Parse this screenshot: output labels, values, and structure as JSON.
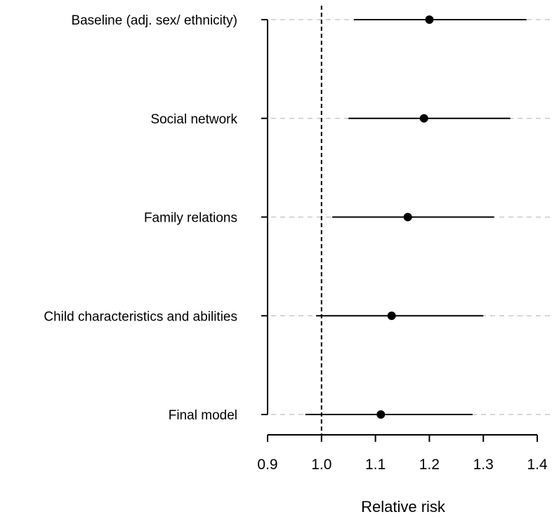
{
  "chart_data": {
    "type": "forest",
    "title": "",
    "xlabel": "Relative risk",
    "ylabel": "",
    "xlim": [
      0.9,
      1.4
    ],
    "xticks": [
      "0.9",
      "1.0",
      "1.1",
      "1.2",
      "1.3",
      "1.4"
    ],
    "reference_line": 1.0,
    "grid": "horizontal dashed guides per row",
    "categories": [
      "Baseline (adj. sex/ ethnicity)",
      "Social network",
      "Family relations",
      "Child characteristics and abilities",
      "Final model"
    ],
    "estimates": [
      1.2,
      1.19,
      1.16,
      1.13,
      1.11
    ],
    "ci_lower": [
      1.06,
      1.05,
      1.02,
      0.99,
      0.97
    ],
    "ci_upper": [
      1.38,
      1.35,
      1.32,
      1.3,
      1.28
    ],
    "colors": {
      "axis": "#000000",
      "guide": "#c8c8c8",
      "marker": "#000000"
    }
  }
}
